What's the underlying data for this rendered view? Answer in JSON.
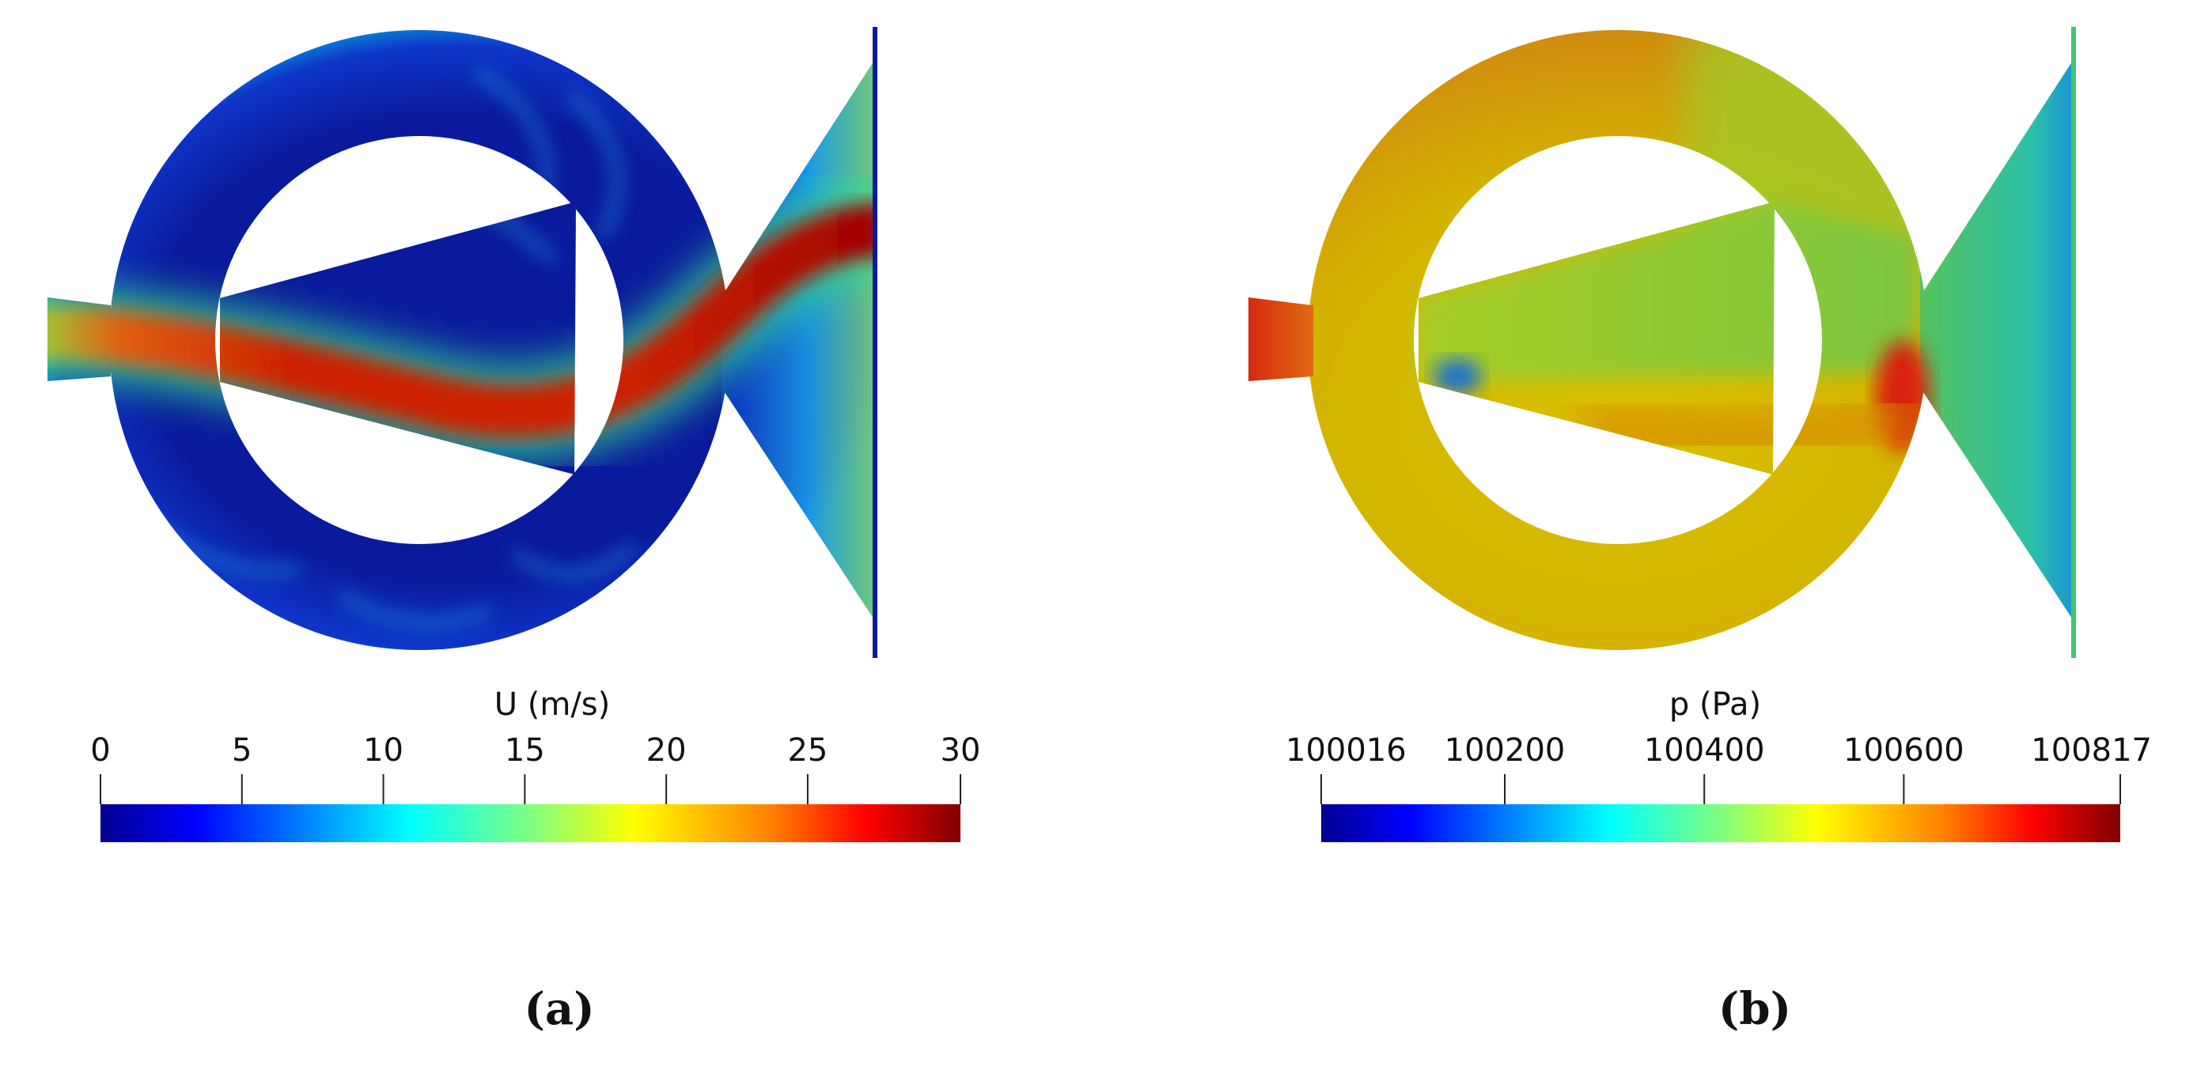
{
  "panels": [
    {
      "id": "a",
      "caption": "(a)",
      "field": "velocity",
      "colorbar": {
        "title": "U (m/s)",
        "min": 0,
        "max": 30.4,
        "ticks": [
          {
            "value": 0,
            "label": "0"
          },
          {
            "value": 5,
            "label": "5"
          },
          {
            "value": 10,
            "label": "10"
          },
          {
            "value": 15,
            "label": "15"
          },
          {
            "value": 20,
            "label": "20"
          },
          {
            "value": 25,
            "label": "25"
          },
          {
            "value": 30.4,
            "label": "30"
          }
        ]
      }
    },
    {
      "id": "b",
      "caption": "(b)",
      "field": "pressure",
      "colorbar": {
        "title": "p (Pa)",
        "min": 100016,
        "max": 100817,
        "ticks": [
          {
            "value": 100016,
            "label": "100016"
          },
          {
            "value": 100200,
            "label": "100200"
          },
          {
            "value": 100400,
            "label": "100400"
          },
          {
            "value": 100600,
            "label": "100600"
          },
          {
            "value": 100817,
            "label": "100817"
          }
        ]
      }
    }
  ],
  "colors": {
    "jet": [
      "#00008f",
      "#0000ff",
      "#0080ff",
      "#00ffff",
      "#80ff80",
      "#ffff00",
      "#ff8000",
      "#ff0000",
      "#800000"
    ],
    "velocity_background": "#0a1fa8",
    "jet_core": "#c81e00",
    "pressure_ring": "#cfc400",
    "pressure_wedge": "#86c836",
    "pressure_outlet": "#43c66e"
  }
}
